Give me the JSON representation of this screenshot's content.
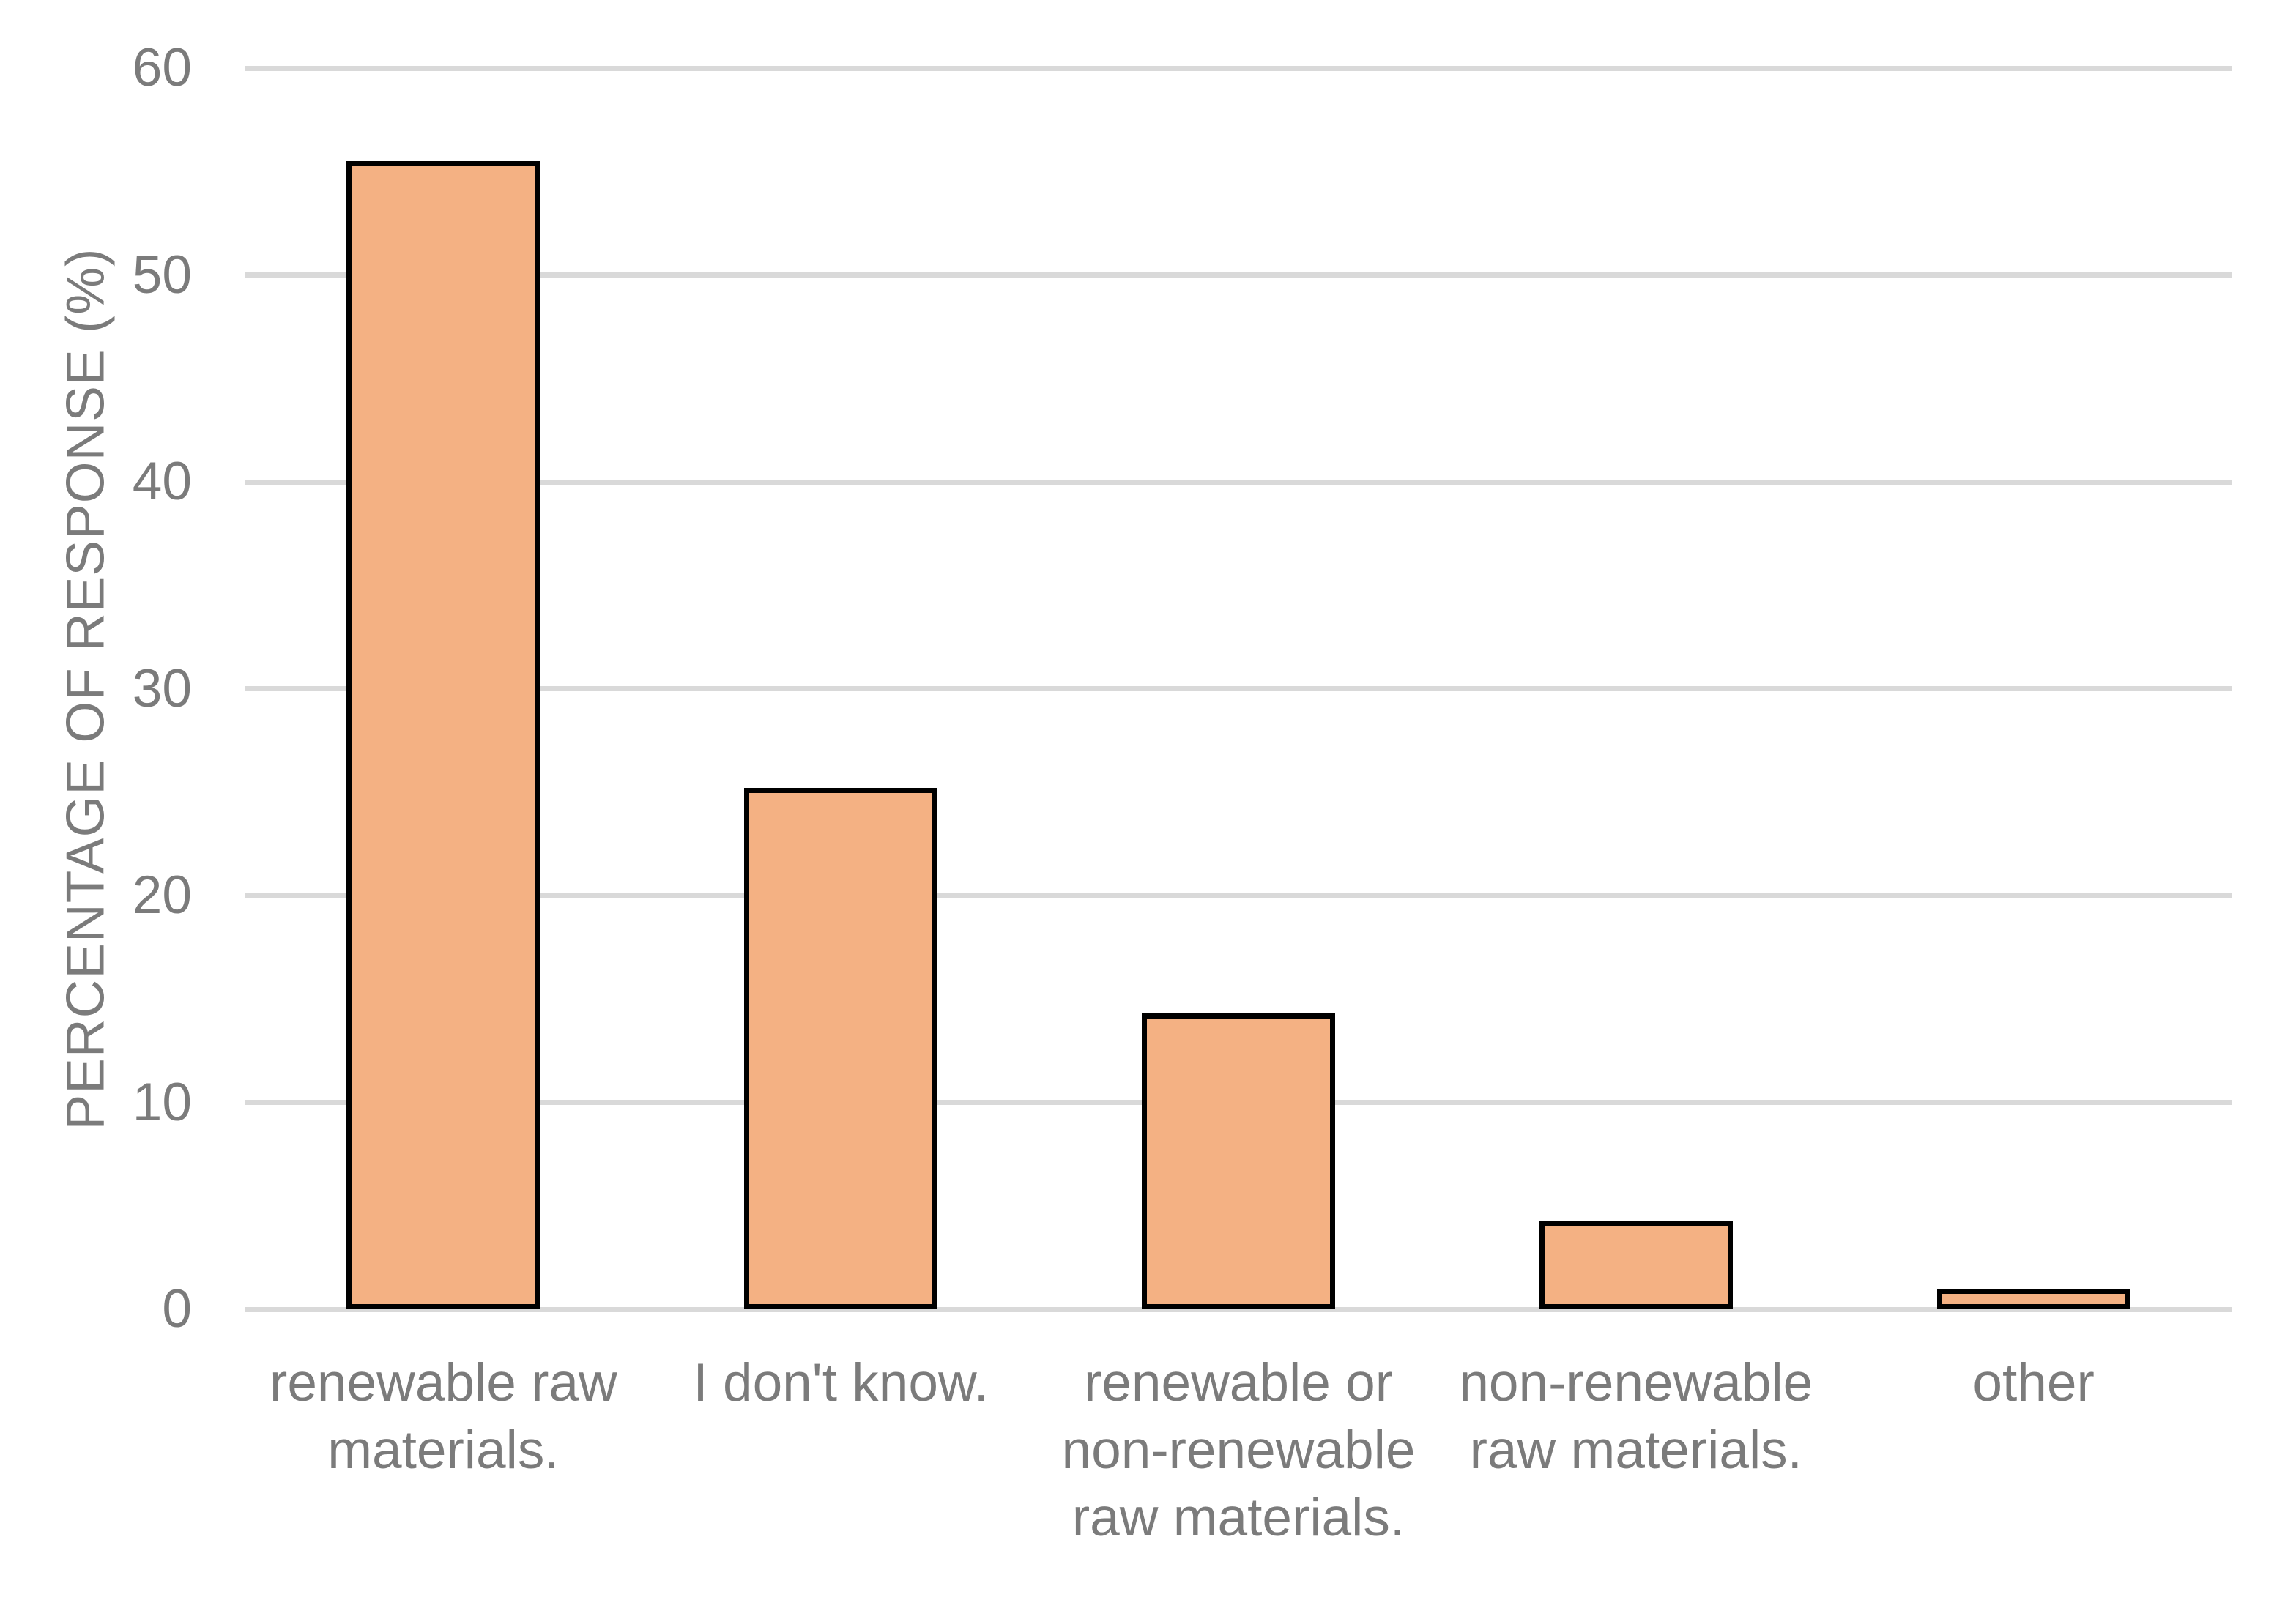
{
  "chart_data": {
    "type": "bar",
    "title": "",
    "xlabel": "",
    "ylabel": "PERCENTAGE OF RESPONSE (%)",
    "ylim": [
      0,
      60
    ],
    "yticks": [
      0,
      10,
      20,
      30,
      40,
      50,
      60
    ],
    "grid": true,
    "legend": false,
    "categories": [
      "renewable raw materials.",
      "I don't know.",
      "renewable or non-renewable raw materials.",
      "non-renewable raw materials.",
      "other"
    ],
    "category_lines": [
      [
        "renewable raw",
        "materials."
      ],
      [
        "I don't know."
      ],
      [
        "renewable or",
        "non-renewable",
        "raw materials."
      ],
      [
        "non-renewable",
        "raw materials."
      ],
      [
        "other"
      ]
    ],
    "values": [
      55.5,
      25.2,
      14.3,
      4.3,
      1.0
    ],
    "colors": {
      "background": "#FFFFFF",
      "bar_fill": "#F4B183",
      "bar_border": "#000000",
      "gridline": "#D9D9D9",
      "axis_text": "#7B7B7B"
    }
  }
}
